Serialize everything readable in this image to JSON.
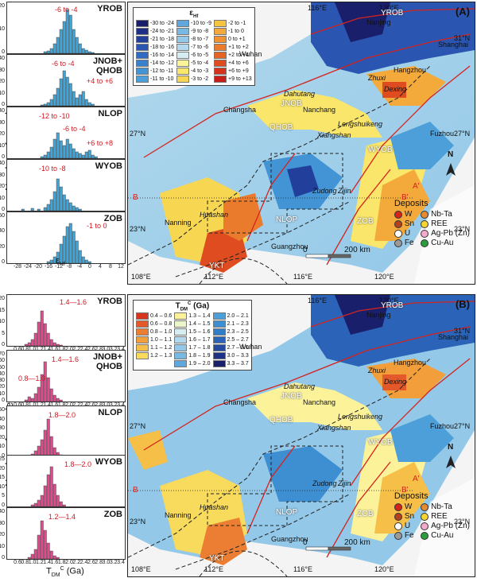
{
  "left_a": {
    "ylabel": "Number of samples",
    "xlabel_main": "ε",
    "xlabel_sub": "Hf",
    "xticks": [
      "-28",
      "-24",
      "-20",
      "-16",
      "-12",
      "-8",
      "-4",
      "0",
      "4",
      "8",
      "12"
    ],
    "panels": [
      {
        "name": "YROB",
        "annotations": [
          "-6 to -4"
        ],
        "yticks": [
          "20",
          "10",
          "0"
        ]
      },
      {
        "name": "JNOB+\nQHOB",
        "annotations": [
          "-6 to -4",
          "+4 to +6"
        ],
        "yticks": [
          "40",
          "30",
          "20",
          "10",
          "0"
        ]
      },
      {
        "name": "NLOP",
        "annotations": [
          "-12 to -10",
          "-6 to -4",
          "+6 to +8"
        ],
        "yticks": [
          "40",
          "30",
          "20",
          "10",
          "0"
        ]
      },
      {
        "name": "WYOB",
        "annotations": [
          "-10 to -8"
        ],
        "yticks": [
          "40",
          "30",
          "20",
          "10",
          "0"
        ]
      },
      {
        "name": "ZOB",
        "annotations": [
          "-1 to 0"
        ],
        "yticks": [
          "60",
          "40",
          "20",
          "0"
        ]
      }
    ]
  },
  "left_b": {
    "ylabel": "Number of samples",
    "xlabel_main": "T",
    "xlabel_sub": "DM",
    "xlabel_sup": "C",
    "xlabel_unit": " (Ga)",
    "xticks": [
      "0.6",
      "0.8",
      "1.0",
      "1.2",
      "1.4",
      "1.6",
      "1.8",
      "2.0",
      "2.2",
      "2.4",
      "2.6",
      "2.8",
      "3.0",
      "3.2",
      "3.4"
    ],
    "panels": [
      {
        "name": "YROB",
        "annotations": [
          "1.4—1.6"
        ],
        "yticks": [
          "20",
          "15",
          "10",
          "5",
          "0"
        ]
      },
      {
        "name": "JNOB+\nQHOB",
        "annotations": [
          "1.4—1.6",
          "0.8—1.0"
        ],
        "yticks": [
          "70",
          "60",
          "50",
          "40",
          "30",
          "20",
          "10",
          "0"
        ]
      },
      {
        "name": "NLOP",
        "annotations": [
          "1.8—2.0"
        ],
        "yticks": [
          "50",
          "40",
          "30",
          "20",
          "10",
          "0"
        ]
      },
      {
        "name": "WYOB",
        "annotations": [
          "1.8—2.0"
        ],
        "yticks": [
          "25",
          "20",
          "15",
          "10",
          "5",
          "0"
        ]
      },
      {
        "name": "ZOB",
        "annotations": [
          "1.2—1.4"
        ],
        "yticks": [
          "40",
          "30",
          "20",
          "10",
          "0"
        ]
      }
    ]
  },
  "map_a": {
    "panel": "(A)",
    "legend_title": "ε",
    "legend_title_sub": "Hf",
    "legend": [
      {
        "label": "-30 to -24",
        "color": "#1a1f6b"
      },
      {
        "label": "-10 to -9",
        "color": "#5fa7dc"
      },
      {
        "label": "-2 to -1",
        "color": "#f5c440"
      },
      {
        "label": "-24 to -21",
        "color": "#1f2f85"
      },
      {
        "label": "-9 to -8",
        "color": "#78b9e3"
      },
      {
        "label": "-1 to 0",
        "color": "#f4a93b"
      },
      {
        "label": "-21 to -18",
        "color": "#233f9c"
      },
      {
        "label": "-8 to -7",
        "color": "#93c8e8"
      },
      {
        "label": "0 to +1",
        "color": "#f09233"
      },
      {
        "label": "-18 to -16",
        "color": "#2a55b0"
      },
      {
        "label": "-7 to -6",
        "color": "#b1d8ec"
      },
      {
        "label": "+1 to +2",
        "color": "#eb7b2c"
      },
      {
        "label": "-16 to -14",
        "color": "#306bc1"
      },
      {
        "label": "-6 to -5",
        "color": "#d6eef2"
      },
      {
        "label": "+2 to +4",
        "color": "#e46325"
      },
      {
        "label": "-14 to -12",
        "color": "#3781cd"
      },
      {
        "label": "-5 to -4",
        "color": "#fbf59a"
      },
      {
        "label": "+4 to +6",
        "color": "#de4c20"
      },
      {
        "label": "-12 to -11",
        "color": "#4294d5"
      },
      {
        "label": "-4 to -3",
        "color": "#f9e66a"
      },
      {
        "label": "+6 to +9",
        "color": "#d5331c"
      },
      {
        "label": "-11 to -10",
        "color": "#4d9fd9"
      },
      {
        "label": "-3 to -2",
        "color": "#f7d652"
      },
      {
        "label": "+9 to +13",
        "color": "#c81e1a"
      }
    ]
  },
  "map_b": {
    "panel": "(B)",
    "legend_title": "T",
    "legend_title_sub": "DM",
    "legend_title_sup": "C",
    "legend_title_unit": "(Ga)",
    "legend": [
      {
        "label": "0.4 – 0.6",
        "color": "#d9341e"
      },
      {
        "label": "1.3 – 1.4",
        "color": "#fbf29a"
      },
      {
        "label": "2.0 – 2.1",
        "color": "#4d9fd9"
      },
      {
        "label": "0.6 – 0.8",
        "color": "#e3592a"
      },
      {
        "label": "1.4 – 1.5",
        "color": "#ecf5c9"
      },
      {
        "label": "2.1 – 2.3",
        "color": "#3d8fd2"
      },
      {
        "label": "0.8 – 1.0",
        "color": "#eb7e33"
      },
      {
        "label": "1.5 – 1.6",
        "color": "#d6eef2"
      },
      {
        "label": "2.3 – 2.5",
        "color": "#307dc9"
      },
      {
        "label": "1.0 – 1.1",
        "color": "#f29e3a"
      },
      {
        "label": "1.6 – 1.7",
        "color": "#b1d8ec"
      },
      {
        "label": "2.5 – 2.7",
        "color": "#2a63b7"
      },
      {
        "label": "1.1 – 1.2",
        "color": "#f6bf47"
      },
      {
        "label": "1.7 – 1.8",
        "color": "#93c8e8"
      },
      {
        "label": "2.7 – 3.0",
        "color": "#2449a0"
      },
      {
        "label": "1.2 – 1.3",
        "color": "#f8da5c"
      },
      {
        "label": "1.8 – 1.9",
        "color": "#78b9e3"
      },
      {
        "label": "3.0 – 3.3",
        "color": "#1e3285"
      },
      {
        "label": "",
        "color": ""
      },
      {
        "label": "1.9 – 2.0",
        "color": "#5fa7dc"
      },
      {
        "label": "3.3 – 3.7",
        "color": "#1a1f6b"
      }
    ]
  },
  "map_text": {
    "lon": [
      "108°E",
      "112°E",
      "116°E",
      "120°E"
    ],
    "lon_top": [
      "116°E",
      "120°E"
    ],
    "lat": [
      "31°N",
      "27°N",
      "23°N"
    ],
    "cities": [
      "Wuhan",
      "Nanjing",
      "Shanghai",
      "Hangzhou",
      "Changsha",
      "Nanchang",
      "Fuzhou",
      "Nanning",
      "Guangzhou"
    ],
    "localities": [
      "Dahutang",
      "Dexing",
      "Zhuxi",
      "Xiangshan",
      "Lengshuikeng",
      "Huashan",
      "Zudong",
      "Zijin"
    ],
    "belts": [
      "YROB",
      "JNOB",
      "QHOB",
      "WYOB",
      "NLOP",
      "ZOB",
      "YKT"
    ],
    "section": [
      "B",
      "B'",
      "A'"
    ],
    "north": "N",
    "scale_0": "0",
    "scale_200": "200 km",
    "deposits_title": "Deposits",
    "deposits": [
      {
        "label": "W",
        "color": "#d5231d"
      },
      {
        "label": "Nb-Ta",
        "color": "#e48a32"
      },
      {
        "label": "Sn",
        "color": "#b4411e"
      },
      {
        "label": "REE",
        "color": "#f5d630"
      },
      {
        "label": "U",
        "color": "#ffffff"
      },
      {
        "label": "Ag-Pb (Zn)",
        "color": "#f3aacb"
      },
      {
        "label": "Fe",
        "color": "#9a9a9a"
      },
      {
        "label": "Cu-Au",
        "color": "#2c9c3f"
      }
    ]
  }
}
